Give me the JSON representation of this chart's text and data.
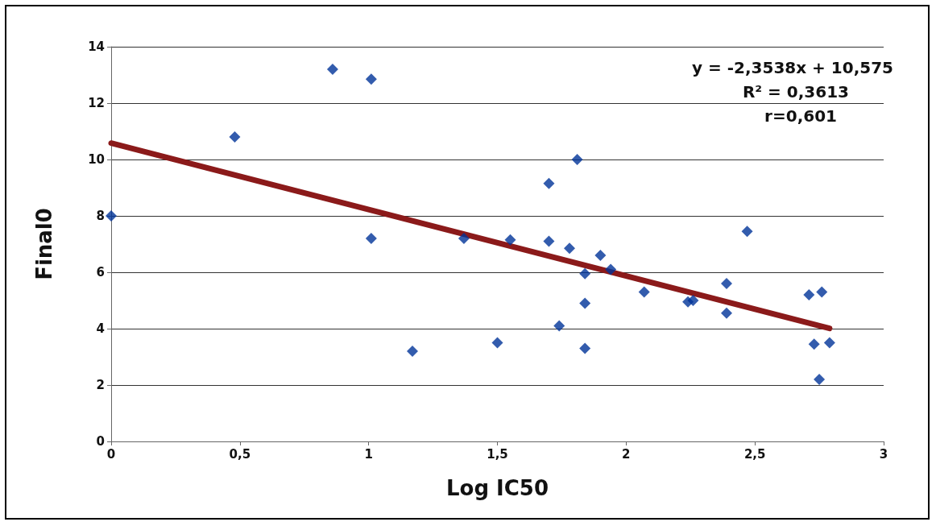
{
  "chart_data": {
    "type": "scatter",
    "xlabel": "Log IC50",
    "ylabel": "Final0",
    "series": [
      {
        "color": "#003399",
        "marker": "diamond",
        "x": [
          0,
          0.48,
          0.86,
          1.01,
          1.01,
          1.17,
          1.37,
          1.5,
          1.55,
          1.7,
          1.7,
          1.74,
          1.78,
          1.81,
          1.84,
          1.84,
          1.84,
          1.9,
          1.94,
          2.07,
          2.24,
          2.26,
          2.39,
          2.39,
          2.47,
          2.71,
          2.73,
          2.75,
          2.76,
          2.79
        ],
        "values": [
          8,
          10.8,
          13.2,
          12.85,
          7.2,
          3.2,
          7.2,
          3.5,
          7.15,
          9.15,
          7.1,
          4.1,
          6.85,
          10,
          5.95,
          4.9,
          3.3,
          6.6,
          6.1,
          5.3,
          4.95,
          5.0,
          5.6,
          4.55,
          7.45,
          5.2,
          3.45,
          2.2,
          5.3,
          3.5
        ]
      },
      {
        "type": "line",
        "color": "#8b1a1a",
        "marker": "none",
        "line_style": "solid",
        "x": [
          0,
          2.79
        ],
        "values": [
          10.58,
          4.01
        ]
      }
    ],
    "xlim": [
      0,
      3
    ],
    "xticks": [
      0,
      {
        "value": 0.5,
        "label": "0,5"
      },
      1,
      {
        "value": 1.5,
        "label": "1,5"
      },
      2,
      {
        "value": 2.5,
        "label": "2,5"
      },
      3
    ],
    "ylim": [
      0,
      14
    ],
    "yticks": [
      0,
      2,
      4,
      6,
      8,
      10,
      12,
      14
    ],
    "grid": "y",
    "annotations": [
      "y = -2,3538x + 10,575",
      "R² = 0,3613",
      "r=0,601"
    ]
  }
}
